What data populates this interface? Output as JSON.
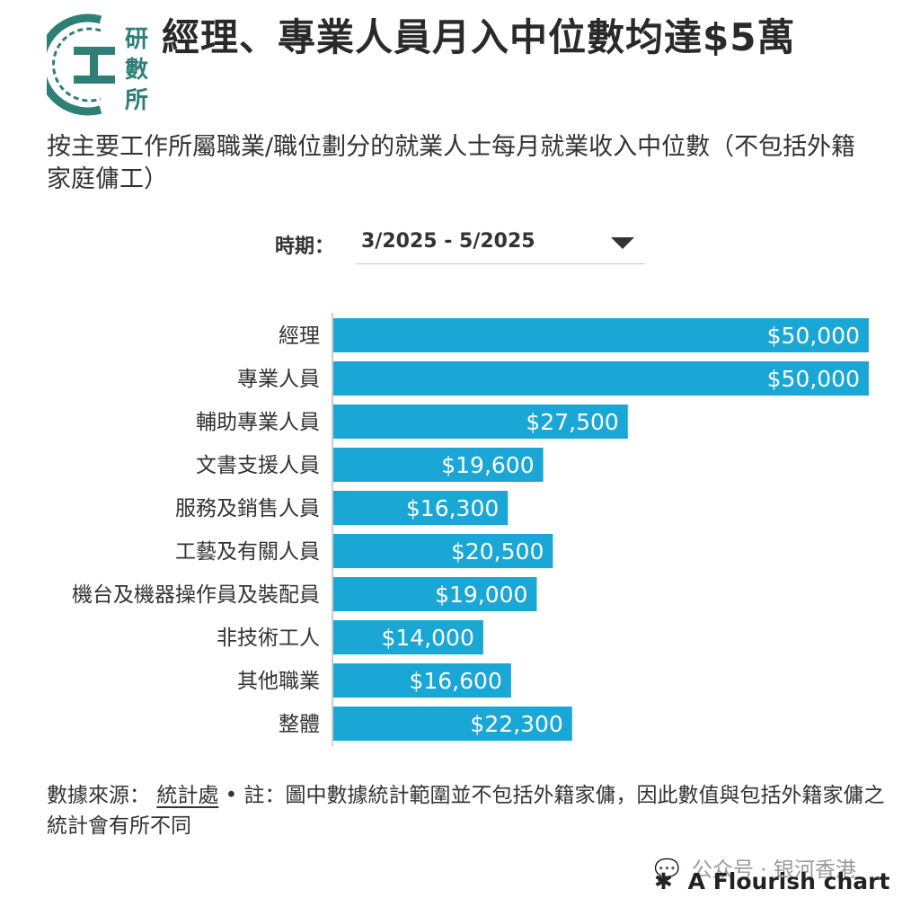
{
  "header": {
    "title": "經理、專業人員月入中位數均達$5萬",
    "subtitle": "按主要工作所屬職業/職位劃分的就業人士每月就業收入中位數（不包括外籍家庭傭工）",
    "logo_text": [
      "研",
      "數",
      "所"
    ]
  },
  "filter": {
    "label": "時期：",
    "value": "3/2025 - 5/2025"
  },
  "colors": {
    "bar": "#1aa7d6",
    "axis": "#cccccc",
    "logo": "#2e7f76"
  },
  "chart_data": {
    "type": "bar",
    "orientation": "horizontal",
    "categories": [
      "經理",
      "專業人員",
      "輔助專業人員",
      "文書支援人員",
      "服務及銷售人員",
      "工藝及有關人員",
      "機台及機器操作員及裝配員",
      "非技術工人",
      "其他職業",
      "整體"
    ],
    "values": [
      50000,
      50000,
      27500,
      19600,
      16300,
      20500,
      19000,
      14000,
      16600,
      22300
    ],
    "value_labels": [
      "$50,000",
      "$50,000",
      "$27,500",
      "$19,600",
      "$16,300",
      "$20,500",
      "$19,000",
      "$14,000",
      "$16,600",
      "$22,300"
    ],
    "xlim": [
      0,
      50000
    ],
    "grid": false
  },
  "footnote": {
    "prefix": "數據來源：",
    "source_link": "統計處",
    "note": "• 註：圖中數據統計範圍並不包括外籍家傭，因此數值與包括外籍家傭之統計會有所不同"
  },
  "watermark": {
    "icon": "wechat-icon",
    "text": "公众号 · 银河香港"
  },
  "credit": {
    "icon": "asterisk-icon",
    "text": "A Flourish chart"
  }
}
